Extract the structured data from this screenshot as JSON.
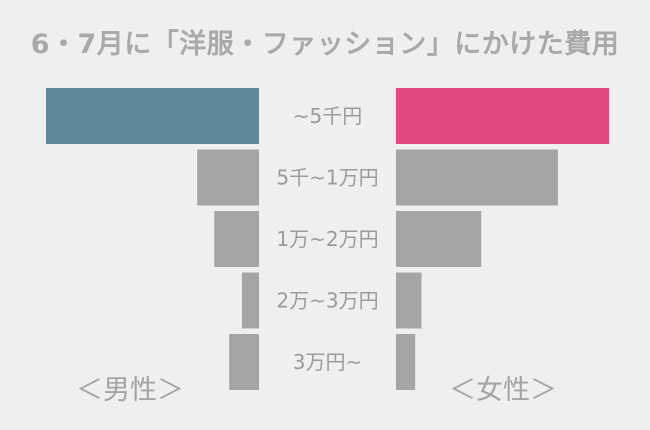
{
  "chart_data": {
    "type": "bar",
    "title": "6・7月に「洋服・ファッション」にかけた費用",
    "categories": [
      "~5千円",
      "5千~1万円",
      "1万~2万円",
      "2万~3万円",
      "3万円~"
    ],
    "series": [
      {
        "name": "＜男性＞",
        "values": [
          100,
          29,
          21,
          8,
          14
        ],
        "highlight_color": "#62899b",
        "color": "#a5a5a5"
      },
      {
        "name": "＜女性＞",
        "values": [
          100,
          76,
          40,
          12,
          9
        ],
        "highlight_color": "#e04a7e",
        "color": "#a5a5a5"
      }
    ],
    "xlim": [
      0,
      100
    ],
    "grid": false,
    "legend": "bottom"
  }
}
